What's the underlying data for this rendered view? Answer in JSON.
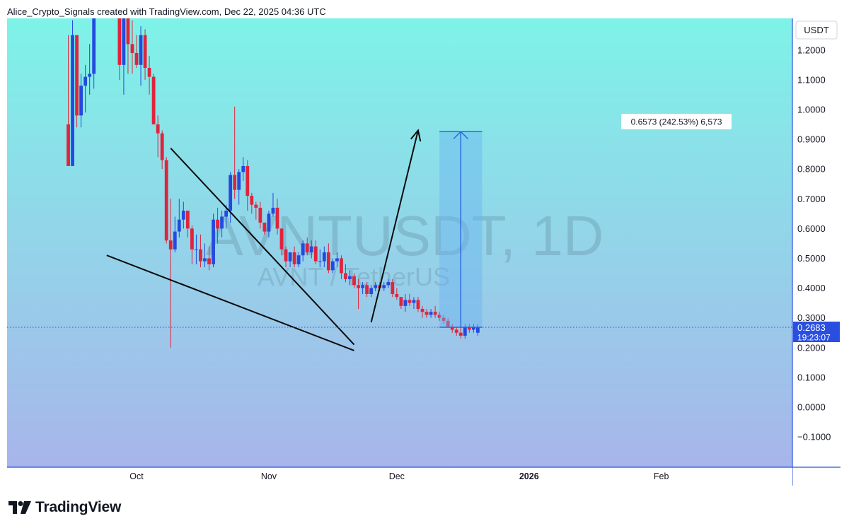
{
  "header": {
    "attribution": "Alice_Crypto_Signals created with TradingView.com, Dec 22, 2025 04:36 UTC"
  },
  "watermark": {
    "symbol": "AVNTUSDT, 1D",
    "description": "AVNT / TetherUS"
  },
  "price_scale": {
    "currency": "USDT",
    "last_price": "0.2683",
    "countdown": "19:23:07"
  },
  "measure_label": "0.6573 (242.53%) 6,573",
  "footer": {
    "brand": "TradingView"
  },
  "colors": {
    "bg_top": "#7ef3e8",
    "bg_bottom": "#a8b5ea",
    "up": "#2449e0",
    "down": "#e0243c",
    "axis": "#2a4fe0",
    "measure_fill": "#6ab4f0",
    "measure_line": "#2a6ae0"
  },
  "chart_data": {
    "type": "candlestick",
    "symbol": "AVNTUSDT",
    "timeframe": "1D",
    "ylim": [
      -0.15,
      1.35
    ],
    "y_ticks": [
      "1.2000",
      "1.1000",
      "1.0000",
      "0.9000",
      "0.8000",
      "0.7000",
      "0.6000",
      "0.5000",
      "0.4000",
      "0.3000",
      "0.2000",
      "0.1000",
      "0.0000",
      "−0.1000"
    ],
    "y_tick_values": [
      1.2,
      1.1,
      1.0,
      0.9,
      0.8,
      0.7,
      0.6,
      0.5,
      0.4,
      0.3,
      0.2,
      0.1,
      0.0,
      -0.1
    ],
    "x_ticks": [
      {
        "label": "Oct",
        "day": 0,
        "bold": false
      },
      {
        "label": "Nov",
        "day": 31,
        "bold": false
      },
      {
        "label": "Dec",
        "day": 61,
        "bold": false
      },
      {
        "label": "2026",
        "day": 92,
        "bold": true
      },
      {
        "label": "Feb",
        "day": 123,
        "bold": false
      }
    ],
    "start_day": -16,
    "candles": [
      [
        0.95,
        1.25,
        0.81,
        0.81
      ],
      [
        0.81,
        1.3,
        0.81,
        1.25
      ],
      [
        1.25,
        1.25,
        0.94,
        0.98
      ],
      [
        0.98,
        1.12,
        0.94,
        1.08
      ],
      [
        1.08,
        1.15,
        0.99,
        1.11
      ],
      [
        1.11,
        1.22,
        1.05,
        1.12
      ],
      [
        1.12,
        1.35,
        1.07,
        1.35
      ],
      null,
      null,
      null,
      null,
      null,
      [
        1.35,
        1.35,
        1.1,
        1.15
      ],
      [
        1.15,
        1.35,
        1.05,
        1.32
      ],
      [
        1.32,
        1.35,
        1.12,
        1.22
      ],
      [
        1.22,
        1.3,
        1.12,
        1.19
      ],
      [
        1.19,
        1.25,
        1.14,
        1.15
      ],
      [
        1.15,
        1.28,
        1.08,
        1.25
      ],
      [
        1.25,
        1.27,
        1.1,
        1.14
      ],
      [
        1.14,
        1.18,
        1.05,
        1.11
      ],
      [
        1.11,
        1.12,
        0.95,
        0.95
      ],
      [
        0.95,
        0.98,
        0.84,
        0.92
      ],
      [
        0.92,
        0.93,
        0.8,
        0.83
      ],
      [
        0.83,
        0.84,
        0.55,
        0.56
      ],
      [
        0.56,
        0.7,
        0.2,
        0.53
      ],
      [
        0.53,
        0.64,
        0.52,
        0.59
      ],
      [
        0.59,
        0.7,
        0.57,
        0.63
      ],
      [
        0.63,
        0.69,
        0.6,
        0.66
      ],
      [
        0.66,
        0.66,
        0.57,
        0.6
      ],
      [
        0.6,
        0.61,
        0.48,
        0.53
      ],
      [
        0.53,
        0.58,
        0.48,
        0.53
      ],
      [
        0.53,
        0.58,
        0.47,
        0.49
      ],
      [
        0.49,
        0.55,
        0.47,
        0.5
      ],
      [
        0.5,
        0.54,
        0.46,
        0.48
      ],
      [
        0.48,
        0.65,
        0.47,
        0.63
      ],
      [
        0.63,
        0.67,
        0.55,
        0.6
      ],
      [
        0.6,
        0.66,
        0.57,
        0.64
      ],
      [
        0.64,
        0.68,
        0.6,
        0.66
      ],
      [
        0.66,
        0.79,
        0.62,
        0.78
      ],
      [
        0.78,
        1.01,
        0.7,
        0.73
      ],
      [
        0.73,
        0.8,
        0.68,
        0.79
      ],
      [
        0.79,
        0.84,
        0.76,
        0.81
      ],
      [
        0.81,
        0.83,
        0.66,
        0.71
      ],
      [
        0.71,
        0.72,
        0.65,
        0.68
      ],
      [
        0.68,
        0.69,
        0.63,
        0.67
      ],
      [
        0.67,
        0.69,
        0.6,
        0.62
      ],
      [
        0.62,
        0.62,
        0.58,
        0.59
      ],
      [
        0.59,
        0.66,
        0.57,
        0.65
      ],
      [
        0.65,
        0.72,
        0.64,
        0.67
      ],
      [
        0.67,
        0.7,
        0.58,
        0.6
      ],
      [
        0.6,
        0.6,
        0.51,
        0.53
      ],
      [
        0.53,
        0.54,
        0.47,
        0.49
      ],
      [
        0.49,
        0.52,
        0.47,
        0.52
      ],
      [
        0.52,
        0.54,
        0.47,
        0.48
      ],
      [
        0.48,
        0.52,
        0.47,
        0.51
      ],
      [
        0.51,
        0.56,
        0.49,
        0.55
      ],
      [
        0.55,
        0.57,
        0.51,
        0.52
      ],
      [
        0.52,
        0.56,
        0.5,
        0.54
      ],
      [
        0.54,
        0.56,
        0.48,
        0.49
      ],
      [
        0.49,
        0.53,
        0.47,
        0.49
      ],
      [
        0.49,
        0.54,
        0.47,
        0.52
      ],
      [
        0.52,
        0.55,
        0.45,
        0.46
      ],
      [
        0.46,
        0.5,
        0.45,
        0.49
      ],
      [
        0.49,
        0.52,
        0.47,
        0.5
      ],
      [
        0.5,
        0.51,
        0.43,
        0.45
      ],
      [
        0.45,
        0.48,
        0.42,
        0.43
      ],
      [
        0.43,
        0.46,
        0.41,
        0.44
      ],
      [
        0.44,
        0.45,
        0.4,
        0.41
      ],
      [
        0.41,
        0.43,
        0.33,
        0.4
      ],
      [
        0.4,
        0.42,
        0.38,
        0.41
      ],
      [
        0.41,
        0.42,
        0.37,
        0.38
      ],
      [
        0.38,
        0.41,
        0.37,
        0.4
      ],
      [
        0.4,
        0.42,
        0.39,
        0.41
      ],
      [
        0.41,
        0.42,
        0.39,
        0.4
      ],
      [
        0.4,
        0.42,
        0.39,
        0.41
      ],
      [
        0.41,
        0.43,
        0.4,
        0.42
      ],
      [
        0.42,
        0.43,
        0.37,
        0.38
      ],
      [
        0.38,
        0.4,
        0.36,
        0.37
      ],
      [
        0.37,
        0.37,
        0.33,
        0.34
      ],
      [
        0.34,
        0.38,
        0.32,
        0.36
      ],
      [
        0.36,
        0.38,
        0.34,
        0.35
      ],
      [
        0.35,
        0.37,
        0.33,
        0.36
      ],
      [
        0.36,
        0.37,
        0.32,
        0.33
      ],
      [
        0.33,
        0.34,
        0.3,
        0.32
      ],
      [
        0.32,
        0.33,
        0.3,
        0.31
      ],
      [
        0.31,
        0.33,
        0.3,
        0.32
      ],
      [
        0.32,
        0.34,
        0.3,
        0.31
      ],
      [
        0.31,
        0.32,
        0.29,
        0.3
      ],
      [
        0.3,
        0.31,
        0.28,
        0.29
      ],
      [
        0.29,
        0.3,
        0.27,
        0.27
      ],
      [
        0.27,
        0.28,
        0.25,
        0.26
      ],
      [
        0.26,
        0.27,
        0.24,
        0.25
      ],
      [
        0.25,
        0.27,
        0.23,
        0.24
      ],
      [
        0.24,
        0.28,
        0.23,
        0.27
      ],
      [
        0.27,
        0.28,
        0.25,
        0.26
      ],
      [
        0.26,
        0.28,
        0.25,
        0.27
      ],
      [
        0.25,
        0.28,
        0.24,
        0.2683
      ]
    ],
    "last_price": 0.2683,
    "drawings": {
      "upper_trendline": [
        [
          8,
          0.87
        ],
        [
          51,
          0.21
        ]
      ],
      "lower_trendline": [
        [
          -7,
          0.51
        ],
        [
          51,
          0.19
        ]
      ],
      "projection_arrow": [
        [
          55,
          0.285
        ],
        [
          66,
          0.93
        ]
      ],
      "price_range": {
        "day_from": 71,
        "day_to": 81,
        "from": 0.2683,
        "to": 0.9256
      }
    }
  }
}
